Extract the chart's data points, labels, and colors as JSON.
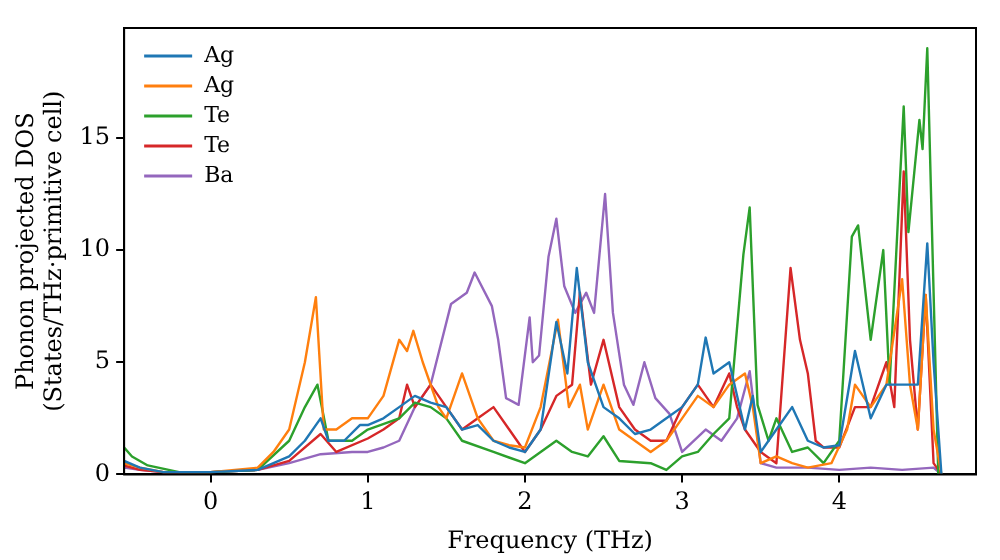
{
  "chart_data": {
    "type": "line",
    "xlabel": "Frequency (THz)",
    "ylabel": "Phonon projected DOS\n(States/THz·primitive cell)",
    "xlim": [
      -0.55,
      4.87
    ],
    "ylim": [
      0,
      19.9
    ],
    "xticks": [
      0,
      1,
      2,
      3,
      4
    ],
    "yticks": [
      0,
      5,
      10,
      15
    ],
    "grid": false,
    "legend": "top left",
    "marker": "none",
    "line_style": "solid",
    "series": [
      {
        "name": "Ag",
        "color": "#1f77b4",
        "x": [
          -0.55,
          -0.45,
          -0.3,
          0,
          0.3,
          0.5,
          0.6,
          0.7,
          0.75,
          0.85,
          0.95,
          1.0,
          1.1,
          1.2,
          1.3,
          1.4,
          1.5,
          1.6,
          1.7,
          1.8,
          1.9,
          2.0,
          2.1,
          2.2,
          2.27,
          2.33,
          2.4,
          2.5,
          2.6,
          2.7,
          2.8,
          2.9,
          3.0,
          3.1,
          3.15,
          3.2,
          3.3,
          3.4,
          3.45,
          3.5,
          3.6,
          3.7,
          3.8,
          3.9,
          4.0,
          4.1,
          4.2,
          4.3,
          4.4,
          4.5,
          4.56,
          4.6,
          4.65
        ],
        "values": [
          0.6,
          0.3,
          0.1,
          0.1,
          0.2,
          0.8,
          1.5,
          2.5,
          1.5,
          1.5,
          2.2,
          2.2,
          2.5,
          3.0,
          3.5,
          3.2,
          3.0,
          2.0,
          2.2,
          1.5,
          1.2,
          1.0,
          2.0,
          6.8,
          4.5,
          9.2,
          5.0,
          3.0,
          2.5,
          1.8,
          2.0,
          2.5,
          3.0,
          4.0,
          6.1,
          4.5,
          5.0,
          2.0,
          3.5,
          1.0,
          2.0,
          3.0,
          1.5,
          1.2,
          1.3,
          5.5,
          2.5,
          4.0,
          4.0,
          4.0,
          10.3,
          5,
          0
        ]
      },
      {
        "name": "Ag",
        "color": "#ff7f0e",
        "x": [
          -0.55,
          -0.45,
          -0.3,
          0,
          0.3,
          0.4,
          0.5,
          0.6,
          0.67,
          0.72,
          0.8,
          0.9,
          1.0,
          1.1,
          1.2,
          1.25,
          1.29,
          1.35,
          1.45,
          1.5,
          1.6,
          1.7,
          1.8,
          1.9,
          2.0,
          2.1,
          2.21,
          2.28,
          2.35,
          2.4,
          2.5,
          2.6,
          2.7,
          2.8,
          2.9,
          3.0,
          3.1,
          3.2,
          3.3,
          3.4,
          3.45,
          3.5,
          3.6,
          3.7,
          3.8,
          3.95,
          4.05,
          4.1,
          4.2,
          4.3,
          4.4,
          4.45,
          4.5,
          4.55,
          4.6,
          4.65
        ],
        "values": [
          0.5,
          0.3,
          0.1,
          0.1,
          0.3,
          1.0,
          2.0,
          5.0,
          7.9,
          2.0,
          2.0,
          2.5,
          2.5,
          3.5,
          6.0,
          5.5,
          6.4,
          5.0,
          3.0,
          2.5,
          4.5,
          2.5,
          1.5,
          1.3,
          1.2,
          3.0,
          6.9,
          3.0,
          4.0,
          2.0,
          4.0,
          2.0,
          1.5,
          1.0,
          1.5,
          2.5,
          3.5,
          3.0,
          4.0,
          4.5,
          3.0,
          0.5,
          0.8,
          0.5,
          0.3,
          0.5,
          2.0,
          4.0,
          3.0,
          4.0,
          8.7,
          4.0,
          2.0,
          8.0,
          2.0,
          0
        ]
      },
      {
        "name": "Te",
        "color": "#2ca02c",
        "x": [
          -0.55,
          -0.5,
          -0.4,
          -0.2,
          0,
          0.3,
          0.5,
          0.6,
          0.68,
          0.75,
          0.9,
          1.0,
          1.2,
          1.3,
          1.4,
          1.5,
          1.6,
          1.8,
          2.0,
          2.1,
          2.2,
          2.3,
          2.4,
          2.5,
          2.6,
          2.8,
          2.9,
          3.0,
          3.1,
          3.2,
          3.3,
          3.39,
          3.43,
          3.48,
          3.55,
          3.6,
          3.7,
          3.8,
          3.9,
          4.0,
          4.08,
          4.12,
          4.2,
          4.28,
          4.32,
          4.41,
          4.44,
          4.51,
          4.53,
          4.56,
          4.63
        ],
        "values": [
          1.2,
          0.8,
          0.4,
          0.1,
          0.1,
          0.2,
          1.5,
          3.0,
          4.0,
          1.5,
          1.5,
          2.0,
          2.5,
          3.2,
          3.0,
          2.5,
          1.5,
          1.0,
          0.5,
          1.0,
          1.5,
          1.0,
          0.8,
          1.7,
          0.6,
          0.5,
          0.2,
          0.8,
          1.0,
          1.8,
          2.5,
          9.8,
          11.9,
          3.1,
          1.5,
          2.5,
          1.0,
          1.2,
          0.5,
          1.5,
          10.6,
          11.1,
          6.0,
          10.0,
          4.0,
          16.4,
          10.8,
          15.8,
          14.5,
          19.0,
          0
        ]
      },
      {
        "name": "Te",
        "color": "#d62728",
        "x": [
          -0.55,
          -0.45,
          -0.3,
          0,
          0.3,
          0.5,
          0.7,
          0.8,
          1.0,
          1.1,
          1.2,
          1.25,
          1.3,
          1.4,
          1.5,
          1.6,
          1.7,
          1.8,
          1.9,
          2.0,
          2.1,
          2.2,
          2.3,
          2.35,
          2.42,
          2.5,
          2.6,
          2.7,
          2.8,
          2.9,
          3.0,
          3.1,
          3.2,
          3.3,
          3.35,
          3.4,
          3.5,
          3.6,
          3.69,
          3.75,
          3.8,
          3.85,
          3.9,
          4.0,
          4.1,
          4.2,
          4.3,
          4.35,
          4.41,
          4.45,
          4.5,
          4.55,
          4.6,
          4.65
        ],
        "values": [
          0.4,
          0.2,
          0.1,
          0.1,
          0.2,
          0.6,
          1.8,
          1.0,
          1.6,
          2.0,
          2.5,
          4.0,
          3.0,
          4.0,
          3.0,
          2.0,
          2.5,
          3.0,
          2.0,
          1.0,
          2.0,
          3.5,
          4.0,
          8.1,
          4.0,
          6.0,
          3.0,
          2.0,
          1.5,
          1.5,
          3.0,
          4.0,
          3.0,
          4.5,
          3.0,
          2.0,
          1.0,
          0.5,
          9.2,
          6.0,
          4.5,
          1.5,
          1.2,
          1.2,
          3.0,
          3.0,
          5.0,
          3.0,
          13.5,
          6.0,
          2.0,
          8.0,
          0.5,
          0
        ]
      },
      {
        "name": "Ba",
        "color": "#9467bd",
        "x": [
          -0.55,
          -0.45,
          -0.3,
          0,
          0.3,
          0.5,
          0.7,
          0.9,
          1.0,
          1.1,
          1.2,
          1.3,
          1.4,
          1.53,
          1.63,
          1.68,
          1.79,
          1.83,
          1.88,
          1.96,
          2.03,
          2.05,
          2.09,
          2.15,
          2.2,
          2.25,
          2.32,
          2.39,
          2.44,
          2.51,
          2.56,
          2.63,
          2.69,
          2.76,
          2.83,
          2.92,
          3.0,
          3.15,
          3.25,
          3.35,
          3.43,
          3.5,
          3.6,
          3.8,
          4.0,
          4.2,
          4.4,
          4.6,
          4.65
        ],
        "values": [
          0.3,
          0.2,
          0.1,
          0.1,
          0.2,
          0.5,
          0.9,
          1.0,
          1.0,
          1.2,
          1.5,
          3.0,
          4.0,
          7.6,
          8.1,
          9.0,
          7.5,
          6.0,
          3.4,
          3.1,
          7.0,
          5.0,
          5.3,
          9.7,
          11.4,
          8.4,
          7.2,
          8.1,
          7.2,
          12.5,
          7.2,
          4.0,
          3.1,
          5.0,
          3.4,
          2.7,
          1.0,
          2.0,
          1.5,
          2.5,
          4.6,
          0.5,
          0.3,
          0.3,
          0.2,
          0.3,
          0.2,
          0.3,
          0
        ]
      }
    ]
  }
}
